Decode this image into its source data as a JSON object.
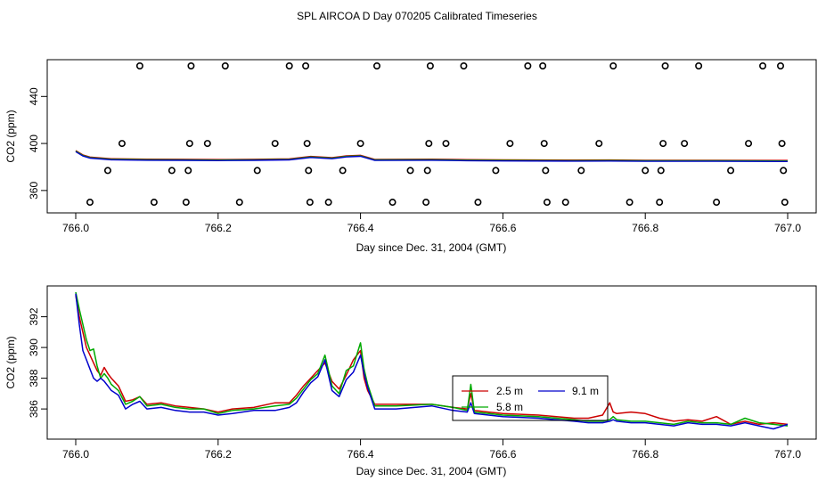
{
  "title": "SPL AIRCOA D  Day 070205  Calibrated Timeseries",
  "chart_data": [
    {
      "type": "line",
      "xlabel": "Day since Dec. 31, 2004 (GMT)",
      "ylabel": "CO2 (ppm)",
      "xlim": [
        766.0,
        767.0
      ],
      "ylim": [
        347,
        466
      ],
      "xticks": [
        766.0,
        766.2,
        766.4,
        766.6,
        766.8,
        767.0
      ],
      "xtick_labels": [
        "766.0",
        "766.2",
        "766.4",
        "766.6",
        "766.8",
        "767.0"
      ],
      "yticks": [
        360,
        400,
        440
      ],
      "ytick_labels": [
        "360",
        "400",
        "440"
      ],
      "grid": false,
      "line_colors": [
        "#cc0000",
        "#00aa00",
        "#0000cc"
      ],
      "line_x": [
        766.0,
        766.01,
        766.02,
        766.05,
        766.1,
        766.15,
        766.2,
        766.25,
        766.3,
        766.33,
        766.36,
        766.38,
        766.4,
        766.42,
        766.5,
        766.55,
        766.6,
        766.7,
        766.75,
        766.8,
        766.9,
        767.0
      ],
      "line_y": [
        393.5,
        389.8,
        388.0,
        386.6,
        386.2,
        386.1,
        385.9,
        386.1,
        386.5,
        388.5,
        387.5,
        389.0,
        389.5,
        386.0,
        386.2,
        385.8,
        385.6,
        385.4,
        385.5,
        385.3,
        385.3,
        385.1
      ],
      "points": [
        {
          "x": 766.02,
          "y": 350
        },
        {
          "x": 766.045,
          "y": 377
        },
        {
          "x": 766.065,
          "y": 400
        },
        {
          "x": 766.09,
          "y": 466
        },
        {
          "x": 766.11,
          "y": 350
        },
        {
          "x": 766.135,
          "y": 377
        },
        {
          "x": 766.155,
          "y": 350
        },
        {
          "x": 766.158,
          "y": 377
        },
        {
          "x": 766.16,
          "y": 400
        },
        {
          "x": 766.162,
          "y": 466
        },
        {
          "x": 766.185,
          "y": 400
        },
        {
          "x": 766.21,
          "y": 466
        },
        {
          "x": 766.23,
          "y": 350
        },
        {
          "x": 766.255,
          "y": 377
        },
        {
          "x": 766.28,
          "y": 400
        },
        {
          "x": 766.3,
          "y": 466
        },
        {
          "x": 766.323,
          "y": 466
        },
        {
          "x": 766.325,
          "y": 400
        },
        {
          "x": 766.327,
          "y": 377
        },
        {
          "x": 766.329,
          "y": 350
        },
        {
          "x": 766.355,
          "y": 350
        },
        {
          "x": 766.375,
          "y": 377
        },
        {
          "x": 766.4,
          "y": 400
        },
        {
          "x": 766.423,
          "y": 466
        },
        {
          "x": 766.445,
          "y": 350
        },
        {
          "x": 766.47,
          "y": 377
        },
        {
          "x": 766.492,
          "y": 350
        },
        {
          "x": 766.494,
          "y": 377
        },
        {
          "x": 766.496,
          "y": 400
        },
        {
          "x": 766.498,
          "y": 466
        },
        {
          "x": 766.52,
          "y": 400
        },
        {
          "x": 766.545,
          "y": 466
        },
        {
          "x": 766.565,
          "y": 350
        },
        {
          "x": 766.59,
          "y": 377
        },
        {
          "x": 766.61,
          "y": 400
        },
        {
          "x": 766.635,
          "y": 466
        },
        {
          "x": 766.656,
          "y": 466
        },
        {
          "x": 766.658,
          "y": 400
        },
        {
          "x": 766.66,
          "y": 377
        },
        {
          "x": 766.662,
          "y": 350
        },
        {
          "x": 766.688,
          "y": 350
        },
        {
          "x": 766.71,
          "y": 377
        },
        {
          "x": 766.735,
          "y": 400
        },
        {
          "x": 766.755,
          "y": 466
        },
        {
          "x": 766.778,
          "y": 350
        },
        {
          "x": 766.8,
          "y": 377
        },
        {
          "x": 766.82,
          "y": 350
        },
        {
          "x": 766.822,
          "y": 377
        },
        {
          "x": 766.825,
          "y": 400
        },
        {
          "x": 766.828,
          "y": 466
        },
        {
          "x": 766.855,
          "y": 400
        },
        {
          "x": 766.875,
          "y": 466
        },
        {
          "x": 766.9,
          "y": 350
        },
        {
          "x": 766.92,
          "y": 377
        },
        {
          "x": 766.945,
          "y": 400
        },
        {
          "x": 766.965,
          "y": 466
        },
        {
          "x": 766.99,
          "y": 466
        },
        {
          "x": 766.992,
          "y": 400
        },
        {
          "x": 766.994,
          "y": 377
        },
        {
          "x": 766.996,
          "y": 350
        }
      ]
    },
    {
      "type": "line",
      "xlabel": "Day since Dec. 31, 2004 (GMT)",
      "ylabel": "CO2 (ppm)",
      "xlim": [
        766.0,
        767.0
      ],
      "ylim": [
        384.5,
        393.6
      ],
      "xticks": [
        766.0,
        766.2,
        766.4,
        766.6,
        766.8,
        767.0
      ],
      "xtick_labels": [
        "766.0",
        "766.2",
        "766.4",
        "766.6",
        "766.8",
        "767.0"
      ],
      "yticks": [
        386,
        388,
        390,
        392
      ],
      "ytick_labels": [
        "386",
        "388",
        "390",
        "392"
      ],
      "grid": false,
      "legend_position": "center-right",
      "series": [
        {
          "name": "2.5 m",
          "color": "#cc0000",
          "x": [
            766.0,
            766.005,
            766.01,
            766.015,
            766.02,
            766.025,
            766.03,
            766.035,
            766.04,
            766.045,
            766.05,
            766.06,
            766.07,
            766.08,
            766.09,
            766.1,
            766.12,
            766.14,
            766.16,
            766.18,
            766.2,
            766.22,
            766.25,
            766.28,
            766.3,
            766.31,
            766.32,
            766.33,
            766.34,
            766.35,
            766.36,
            766.37,
            766.38,
            766.39,
            766.4,
            766.405,
            766.41,
            766.42,
            766.45,
            766.5,
            766.53,
            766.55,
            766.555,
            766.56,
            766.58,
            766.6,
            766.65,
            766.7,
            766.72,
            766.74,
            766.75,
            766.755,
            766.76,
            766.78,
            766.8,
            766.82,
            766.84,
            766.86,
            766.88,
            766.9,
            766.92,
            766.94,
            766.96,
            766.98,
            767.0
          ],
          "y": [
            393.4,
            392.0,
            391.0,
            390.0,
            389.5,
            389.0,
            388.5,
            388.2,
            388.7,
            388.3,
            388.0,
            387.5,
            386.5,
            386.6,
            386.8,
            386.3,
            386.4,
            386.2,
            386.1,
            386.0,
            385.8,
            386.0,
            386.1,
            386.4,
            386.4,
            386.9,
            387.5,
            388.0,
            388.5,
            389.0,
            387.8,
            387.3,
            388.2,
            389.2,
            389.8,
            388.0,
            387.2,
            386.3,
            386.3,
            386.3,
            386.1,
            386.0,
            387.0,
            385.9,
            385.8,
            385.7,
            385.6,
            385.4,
            385.4,
            385.6,
            386.4,
            385.8,
            385.7,
            385.8,
            385.7,
            385.4,
            385.2,
            385.3,
            385.2,
            385.5,
            385.0,
            385.2,
            385.0,
            385.1,
            385.0
          ]
        },
        {
          "name": "5.8 m",
          "color": "#00aa00",
          "x": [
            766.0,
            766.005,
            766.01,
            766.015,
            766.02,
            766.025,
            766.03,
            766.035,
            766.04,
            766.045,
            766.05,
            766.06,
            766.07,
            766.08,
            766.09,
            766.1,
            766.12,
            766.14,
            766.16,
            766.18,
            766.2,
            766.22,
            766.25,
            766.28,
            766.3,
            766.31,
            766.32,
            766.33,
            766.34,
            766.35,
            766.36,
            766.37,
            766.38,
            766.39,
            766.4,
            766.405,
            766.41,
            766.42,
            766.45,
            766.5,
            766.53,
            766.55,
            766.555,
            766.56,
            766.58,
            766.6,
            766.65,
            766.7,
            766.72,
            766.74,
            766.75,
            766.755,
            766.76,
            766.78,
            766.8,
            766.82,
            766.84,
            766.86,
            766.88,
            766.9,
            766.92,
            766.94,
            766.96,
            766.98,
            767.0
          ],
          "y": [
            393.6,
            392.5,
            391.5,
            390.5,
            389.8,
            389.9,
            388.8,
            388.0,
            388.3,
            388.0,
            387.6,
            387.2,
            386.3,
            386.5,
            386.8,
            386.2,
            386.3,
            386.1,
            386.0,
            386.0,
            385.7,
            385.9,
            386.0,
            386.2,
            386.3,
            386.7,
            387.3,
            387.9,
            388.3,
            389.5,
            387.5,
            387.0,
            388.5,
            388.8,
            390.3,
            388.6,
            387.6,
            386.2,
            386.2,
            386.3,
            386.1,
            385.9,
            387.6,
            385.8,
            385.7,
            385.6,
            385.5,
            385.3,
            385.2,
            385.2,
            385.3,
            385.5,
            385.3,
            385.2,
            385.2,
            385.1,
            385.0,
            385.2,
            385.1,
            385.1,
            385.0,
            385.4,
            385.1,
            385.0,
            384.9
          ]
        },
        {
          "name": "9.1 m",
          "color": "#0000cc",
          "x": [
            766.0,
            766.005,
            766.01,
            766.015,
            766.02,
            766.025,
            766.03,
            766.035,
            766.04,
            766.045,
            766.05,
            766.06,
            766.07,
            766.08,
            766.09,
            766.1,
            766.12,
            766.14,
            766.16,
            766.18,
            766.2,
            766.22,
            766.25,
            766.28,
            766.3,
            766.31,
            766.32,
            766.33,
            766.34,
            766.35,
            766.36,
            766.37,
            766.38,
            766.39,
            766.4,
            766.405,
            766.41,
            766.42,
            766.45,
            766.5,
            766.53,
            766.55,
            766.555,
            766.56,
            766.58,
            766.6,
            766.65,
            766.7,
            766.72,
            766.74,
            766.75,
            766.755,
            766.76,
            766.78,
            766.8,
            766.82,
            766.84,
            766.86,
            766.88,
            766.9,
            766.92,
            766.94,
            766.96,
            766.98,
            767.0
          ],
          "y": [
            393.5,
            391.5,
            389.8,
            389.2,
            388.6,
            388.0,
            387.8,
            388.0,
            387.8,
            387.5,
            387.2,
            386.9,
            386.0,
            386.3,
            386.5,
            386.0,
            386.1,
            385.9,
            385.8,
            385.8,
            385.6,
            385.7,
            385.9,
            385.9,
            386.1,
            386.4,
            387.1,
            387.7,
            388.1,
            389.2,
            387.2,
            386.8,
            387.9,
            388.4,
            389.5,
            388.3,
            387.4,
            386.0,
            386.0,
            386.2,
            385.9,
            385.8,
            386.4,
            385.7,
            385.6,
            385.5,
            385.4,
            385.2,
            385.1,
            385.1,
            385.2,
            385.3,
            385.2,
            385.1,
            385.1,
            385.0,
            384.9,
            385.1,
            385.0,
            385.0,
            384.9,
            385.1,
            384.9,
            384.7,
            385.0
          ]
        }
      ]
    }
  ]
}
